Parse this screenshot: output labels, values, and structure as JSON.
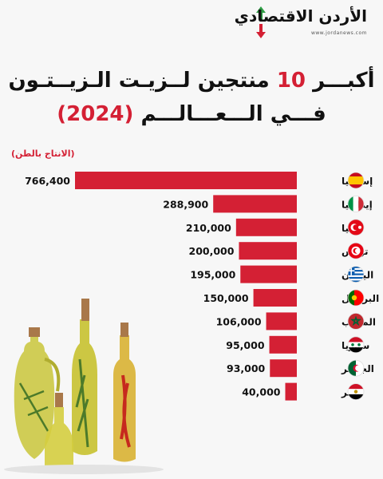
{
  "logo": {
    "text": "الأردن الاقتصادي",
    "url": "www.jordanews.com"
  },
  "title": {
    "line1_before": "أكبـــر ",
    "line1_number": "10",
    "line1_after": " منتجين لــزيـت الـزيــتـون",
    "line2_before": "فـــي الـــعـــالـــم ",
    "line2_year": "(2024)"
  },
  "colors": {
    "accent": "#d42034",
    "bar": "#d42034",
    "text": "#111111"
  },
  "chart_data": {
    "type": "bar",
    "orientation": "horizontal",
    "unit_label": "(الانتاج بالطن)",
    "categories": [
      "إسبانيا",
      "إيطاليا",
      "تركيا",
      "تونس",
      "اليونان",
      "البرتغال",
      "المغرب",
      "سوريا",
      "الجزائر",
      "مصر"
    ],
    "values": [
      766400,
      288900,
      210000,
      200000,
      195000,
      150000,
      106000,
      95000,
      93000,
      40000
    ],
    "value_labels": [
      "766,400",
      "288,900",
      "210,000",
      "200,000",
      "195,000",
      "150,000",
      "106,000",
      "95,000",
      "93,000",
      "40,000"
    ],
    "flag_icons": [
      "flag-spain-icon",
      "flag-italy-icon",
      "flag-turkey-icon",
      "flag-tunisia-icon",
      "flag-greece-icon",
      "flag-portugal-icon",
      "flag-morocco-icon",
      "flag-syria-icon",
      "flag-algeria-icon",
      "flag-egypt-icon"
    ],
    "grid": false,
    "legend": "none"
  }
}
